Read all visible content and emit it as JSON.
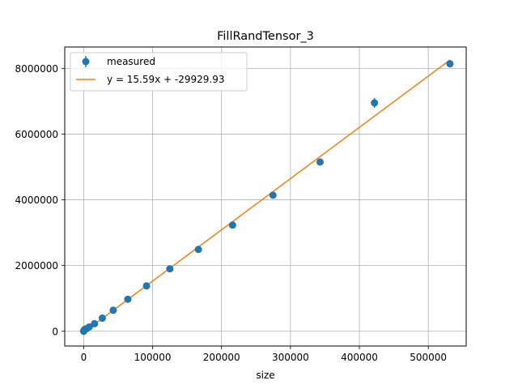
{
  "chart_data": {
    "type": "scatter",
    "title": "FillRandTensor_3",
    "xlabel": "size",
    "ylabel": "",
    "xlim": [
      -27500,
      555000
    ],
    "ylim": [
      -450000,
      8650000
    ],
    "xticks": [
      0,
      100000,
      200000,
      300000,
      400000,
      500000
    ],
    "xtick_labels": [
      "0",
      "100000",
      "200000",
      "300000",
      "400000",
      "500000"
    ],
    "yticks": [
      0,
      2000000,
      4000000,
      6000000,
      8000000
    ],
    "ytick_labels": [
      "0",
      "2000000",
      "4000000",
      "6000000",
      "8000000"
    ],
    "grid": true,
    "legend": {
      "placement": "top-left",
      "entries": [
        "measured",
        "y = 15.59x + -29929.93"
      ]
    },
    "series": [
      {
        "name": "measured",
        "kind": "errorbar",
        "color": "#1f77b4",
        "x": [
          1,
          64,
          512,
          1728,
          4096,
          8000,
          15625,
          27000,
          42875,
          64000,
          91125,
          125000,
          166375,
          216000,
          274625,
          343000,
          421875,
          531441
        ],
        "y": [
          0,
          5000,
          30000,
          60000,
          80000,
          130000,
          230000,
          400000,
          640000,
          975000,
          1380000,
          1900000,
          2490000,
          3230000,
          4140000,
          5150000,
          6950000,
          8140000
        ],
        "yerr": [
          0,
          0,
          0,
          0,
          0,
          0,
          15000,
          15000,
          20000,
          20000,
          25000,
          30000,
          35000,
          40000,
          50000,
          60000,
          150000,
          80000
        ]
      },
      {
        "name": "y = 15.59x + -29929.93",
        "kind": "line",
        "color": "#ff7f0e",
        "slope": 15.59,
        "intercept": -29929.93,
        "x": [
          1,
          531441
        ]
      }
    ]
  }
}
